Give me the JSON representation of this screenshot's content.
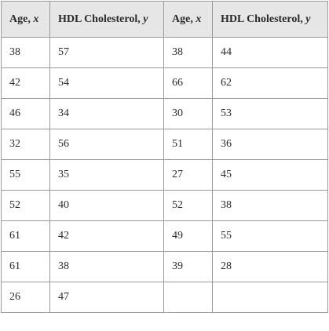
{
  "table": {
    "headers": [
      {
        "label": "Age, ",
        "var": "x"
      },
      {
        "label": "HDL Cholesterol, ",
        "var": "y"
      },
      {
        "label": "Age, ",
        "var": "x"
      },
      {
        "label": "HDL Cholesterol, ",
        "var": "y"
      }
    ],
    "rows": [
      [
        "38",
        "57",
        "38",
        "44"
      ],
      [
        "42",
        "54",
        "66",
        "62"
      ],
      [
        "46",
        "34",
        "30",
        "53"
      ],
      [
        "32",
        "56",
        "51",
        "36"
      ],
      [
        "55",
        "35",
        "27",
        "45"
      ],
      [
        "52",
        "40",
        "52",
        "38"
      ],
      [
        "61",
        "42",
        "49",
        "55"
      ],
      [
        "61",
        "38",
        "39",
        "28"
      ],
      [
        "26",
        "47",
        "",
        ""
      ]
    ]
  }
}
